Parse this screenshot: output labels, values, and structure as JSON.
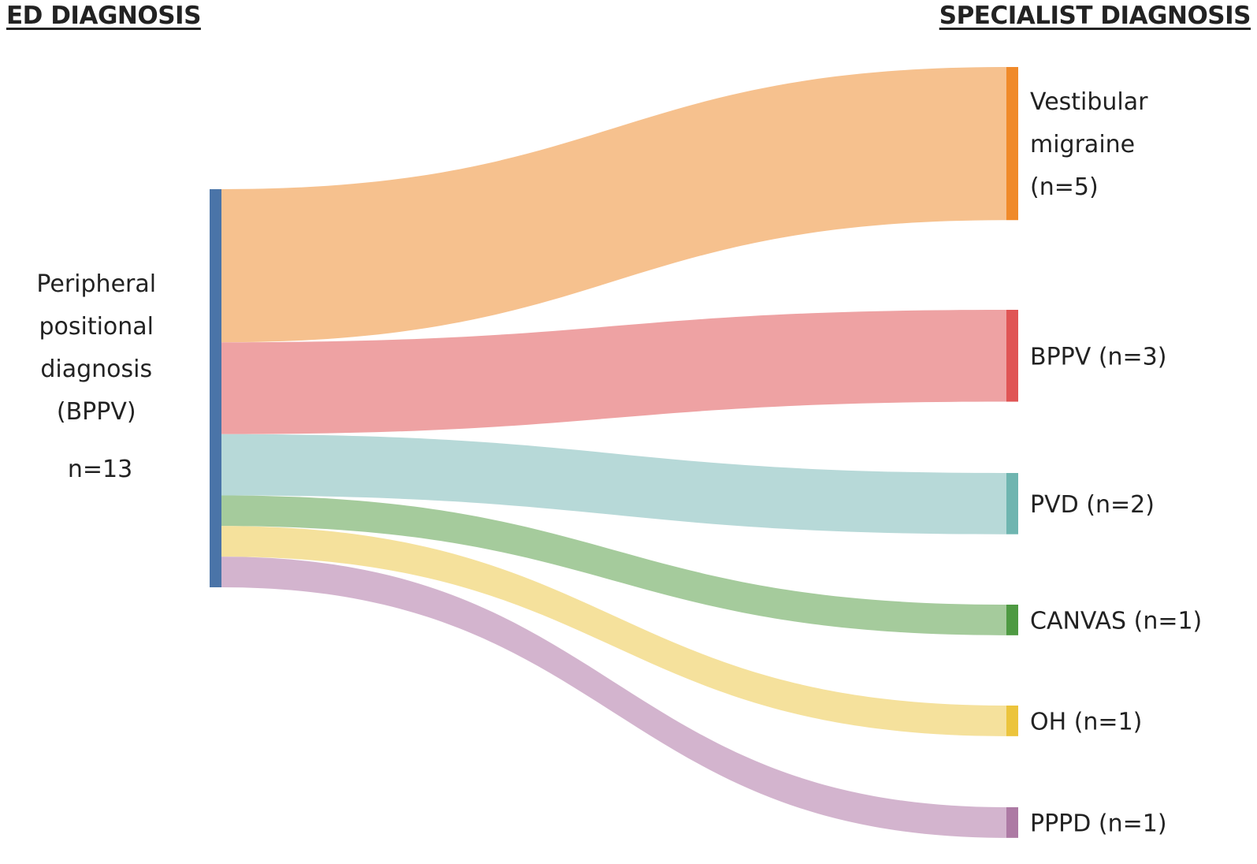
{
  "headers": {
    "left": "ED DIAGNOSIS",
    "right": "SPECIALIST  DIAGNOSIS"
  },
  "source": {
    "lines": [
      "Peripheral",
      "positional",
      "diagnosis",
      "(BPPV)"
    ],
    "count_label": "n=13",
    "color": "#4a74a8"
  },
  "chart_data": {
    "type": "sankey",
    "source": "Peripheral positional diagnosis (BPPV)",
    "total": 13,
    "flows": [
      {
        "target_lines": [
          "Vestibular",
          "migraine",
          "(n=5)"
        ],
        "value": 5,
        "node_color": "#f08a2a",
        "flow_color": "#f6c18e"
      },
      {
        "target_lines": [
          "BPPV (n=3)"
        ],
        "value": 3,
        "node_color": "#e05555",
        "flow_color": "#eea2a3"
      },
      {
        "target_lines": [
          "PVD (n=2)"
        ],
        "value": 2,
        "node_color": "#6fb5b0",
        "flow_color": "#b7d9d8"
      },
      {
        "target_lines": [
          "CANVAS (n=1)"
        ],
        "value": 1,
        "node_color": "#4e9a42",
        "flow_color": "#a5cb9c"
      },
      {
        "target_lines": [
          "OH (n=1)"
        ],
        "value": 1,
        "node_color": "#ecc43c",
        "flow_color": "#f5e19c"
      },
      {
        "target_lines": [
          "PPPD (n=1)"
        ],
        "value": 1,
        "node_color": "#ad7aa4",
        "flow_color": "#d3b4ce"
      }
    ]
  }
}
